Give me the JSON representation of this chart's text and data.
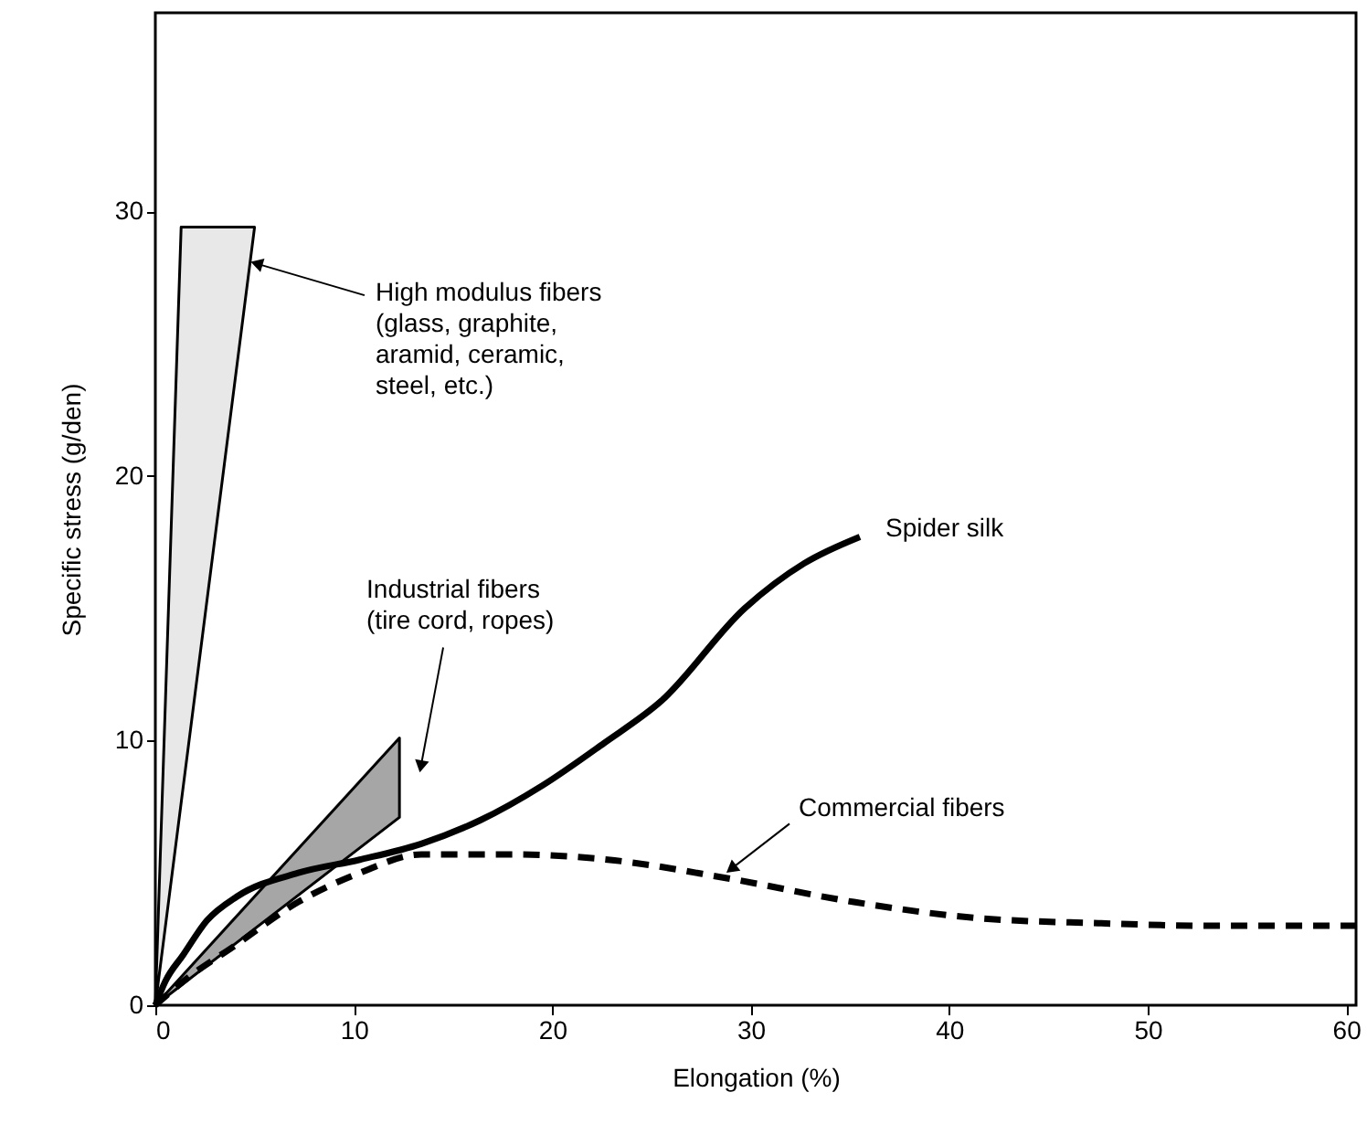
{
  "chart_data": {
    "type": "line",
    "xlabel": "Elongation (%)",
    "ylabel": "Specific stress (g/den)",
    "xlim": [
      0,
      60.5
    ],
    "ylim": [
      0,
      37.5
    ],
    "xticks": [
      0,
      10,
      20,
      30,
      40,
      50,
      60
    ],
    "yticks": [
      0,
      10,
      20,
      30
    ],
    "grid": false,
    "series": [
      {
        "type": "area",
        "color": "#e8e8e8",
        "x": [
          0,
          1.3,
          5.0
        ],
        "values": [
          0,
          29.4,
          29.4
        ]
      },
      {
        "type": "area",
        "color": "#a6a6a6",
        "x": [
          0,
          12.3,
          12.3
        ],
        "values": [
          0,
          10.1,
          7.1
        ]
      },
      {
        "type": "line",
        "color": "#000000",
        "line_style": "solid",
        "x": [
          0,
          0.5,
          1.4,
          2.6,
          4.1,
          7.2,
          10.3,
          13.4,
          16.4,
          19.5,
          22.6,
          25.5,
          29.7,
          32.7,
          35.5
        ],
        "values": [
          0,
          0.9,
          1.9,
          3.2,
          4.1,
          5.0,
          5.5,
          6.1,
          7.0,
          8.3,
          9.9,
          11.5,
          15.0,
          16.7,
          17.7
        ]
      },
      {
        "type": "line",
        "color": "#000000",
        "line_style": "dashed",
        "x": [
          0,
          1.4,
          4.1,
          7.2,
          10.3,
          13.4,
          18,
          22.8,
          28.8,
          35.2,
          41.3,
          47.5,
          53.6,
          60.5
        ],
        "values": [
          0,
          0.9,
          2.3,
          3.9,
          5.0,
          5.7,
          5.7,
          5.5,
          4.8,
          3.9,
          3.3,
          3.1,
          3.0,
          3.0
        ]
      }
    ],
    "annotations": [
      {
        "text": "High modulus fibers\n(glass, graphite,\naramid, ceramic,\nsteel, etc.)",
        "x": 5.2,
        "y": 28.0
      },
      {
        "text": "Industrial fibers\n(tire cord, ropes)",
        "x": 13.4,
        "y": 9.1
      },
      {
        "text": "Spider silk",
        "x": 35.5,
        "y": 17.7
      },
      {
        "text": "Commercial fibers",
        "x": 29.1,
        "y": 5.2
      }
    ]
  }
}
